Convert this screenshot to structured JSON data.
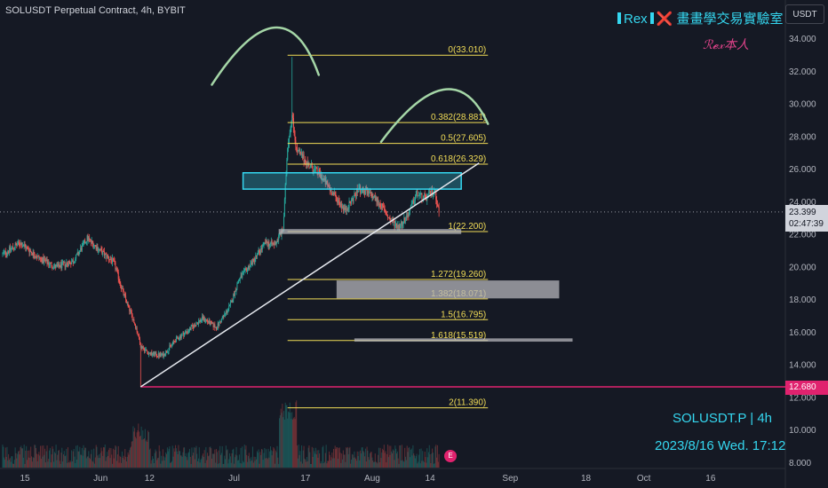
{
  "header": {
    "title": "SOLUSDT Perpetual Contract, 4h, BYBIT"
  },
  "branding": {
    "prefix": "Rex",
    "cross": "❌",
    "name": "畫畫學交易實驗室",
    "signature": "ℛ𝓮𝓍本人"
  },
  "currency_button": "USDT",
  "watermark": {
    "symbol": "SOLUSDT.P | 4h",
    "datetime": "2023/8/16 Wed. 17:12"
  },
  "current_price": {
    "price": "23.399",
    "countdown": "02:47:39"
  },
  "level_tag": "12.680",
  "earnings_flag": "E",
  "colors": {
    "background": "#151924",
    "up": "#26a69a",
    "down": "#ef5350",
    "fib": "#f2dd57",
    "zone": "#35d7f0",
    "arc": "#a5d6a7",
    "pink": "#e0226e"
  },
  "chart_data": {
    "type": "candlestick",
    "symbol": "SOLUSDT",
    "interval": "4h",
    "exchange": "BYBIT",
    "yaxis": {
      "ylim": [
        7.8,
        35.0
      ],
      "ticks": [
        "8.000",
        "10.000",
        "12.000",
        "14.000",
        "16.000",
        "18.000",
        "20.000",
        "22.000",
        "24.000",
        "26.000",
        "28.000",
        "30.000",
        "32.000",
        "34.000"
      ]
    },
    "xaxis": {
      "tick_labels": [
        "15",
        "Jun",
        "12",
        "Jul",
        "17",
        "Aug",
        "14",
        "Sep",
        "18",
        "Oct",
        "16"
      ]
    },
    "price_path": [
      [
        "2023-05-10",
        20.8
      ],
      [
        "2023-05-14",
        21.5
      ],
      [
        "2023-05-18",
        20.6
      ],
      [
        "2023-05-22",
        20.0
      ],
      [
        "2023-05-26",
        20.4
      ],
      [
        "2023-05-29",
        21.8
      ],
      [
        "2023-06-01",
        21.0
      ],
      [
        "2023-06-04",
        20.3
      ],
      [
        "2023-06-06",
        18.5
      ],
      [
        "2023-06-09",
        16.3
      ],
      [
        "2023-06-10",
        15.2
      ],
      [
        "2023-06-12",
        14.7
      ],
      [
        "2023-06-15",
        14.6
      ],
      [
        "2023-06-18",
        15.6
      ],
      [
        "2023-06-21",
        16.2
      ],
      [
        "2023-06-24",
        16.9
      ],
      [
        "2023-06-27",
        16.3
      ],
      [
        "2023-06-30",
        17.6
      ],
      [
        "2023-07-02",
        19.2
      ],
      [
        "2023-07-05",
        20.3
      ],
      [
        "2023-07-08",
        21.5
      ],
      [
        "2023-07-10",
        21.4
      ],
      [
        "2023-07-12",
        22.3
      ],
      [
        "2023-07-13",
        27.5
      ],
      [
        "2023-07-14",
        29.3
      ],
      [
        "2023-07-15",
        27.2
      ],
      [
        "2023-07-18",
        26.2
      ],
      [
        "2023-07-20",
        25.8
      ],
      [
        "2023-07-23",
        24.6
      ],
      [
        "2023-07-26",
        23.5
      ],
      [
        "2023-07-29",
        24.8
      ],
      [
        "2023-08-01",
        24.4
      ],
      [
        "2023-08-03",
        23.8
      ],
      [
        "2023-08-05",
        22.9
      ],
      [
        "2023-08-07",
        22.5
      ],
      [
        "2023-08-09",
        23.2
      ],
      [
        "2023-08-11",
        24.5
      ],
      [
        "2023-08-13",
        24.2
      ],
      [
        "2023-08-15",
        24.8
      ],
      [
        "2023-08-16",
        23.399
      ]
    ],
    "highs": [
      {
        "date": "2023-07-14",
        "value": 32.9
      }
    ],
    "lows": [
      {
        "date": "2023-06-10",
        "value": 12.68
      }
    ],
    "current_price": 23.399,
    "horizontal_levels": [
      {
        "value": 12.68,
        "label": "12.680"
      }
    ],
    "fib_levels": [
      {
        "label": "0(33.010)",
        "value": 33.01
      },
      {
        "label": "0.382(28.881)",
        "value": 28.881
      },
      {
        "label": "0.5(27.605)",
        "value": 27.605
      },
      {
        "label": "0.618(26.329)",
        "value": 26.329
      },
      {
        "label": "1(22.200)",
        "value": 22.2
      },
      {
        "label": "1.272(19.260)",
        "value": 19.26
      },
      {
        "label": "1.382(18.071)",
        "value": 18.071
      },
      {
        "label": "1.5(16.795)",
        "value": 16.795
      },
      {
        "label": "1.618(15.519)",
        "value": 15.519
      },
      {
        "label": "2(11.390)",
        "value": 11.39
      }
    ],
    "fib_range": {
      "start": "2023-07-13",
      "end": "2023-08-27"
    },
    "trendline": {
      "from": [
        "2023-06-10",
        12.68
      ],
      "to": [
        "2023-08-25",
        26.4
      ]
    },
    "zones": [
      {
        "kind": "resistance-box",
        "from": "2023-07-03",
        "to": "2023-08-21",
        "low": 24.8,
        "high": 25.8
      },
      {
        "kind": "gray-bar",
        "from": "2023-07-11",
        "to": "2023-08-21",
        "low": 22.05,
        "high": 22.35
      },
      {
        "kind": "gray-box",
        "from": "2023-07-24",
        "to": "2023-09-12",
        "low": 18.1,
        "high": 19.2
      },
      {
        "kind": "gray-bar",
        "from": "2023-07-28",
        "to": "2023-09-15",
        "low": 15.45,
        "high": 15.65
      }
    ],
    "arcs": [
      {
        "from": [
          "2023-06-26",
          31.2
        ],
        "peak": [
          "2023-07-10",
          34.7
        ],
        "to": [
          "2023-07-20",
          31.8
        ]
      },
      {
        "from": [
          "2023-08-03",
          27.7
        ],
        "peak": [
          "2023-08-17",
          30.9
        ],
        "to": [
          "2023-08-27",
          28.8
        ]
      }
    ]
  }
}
